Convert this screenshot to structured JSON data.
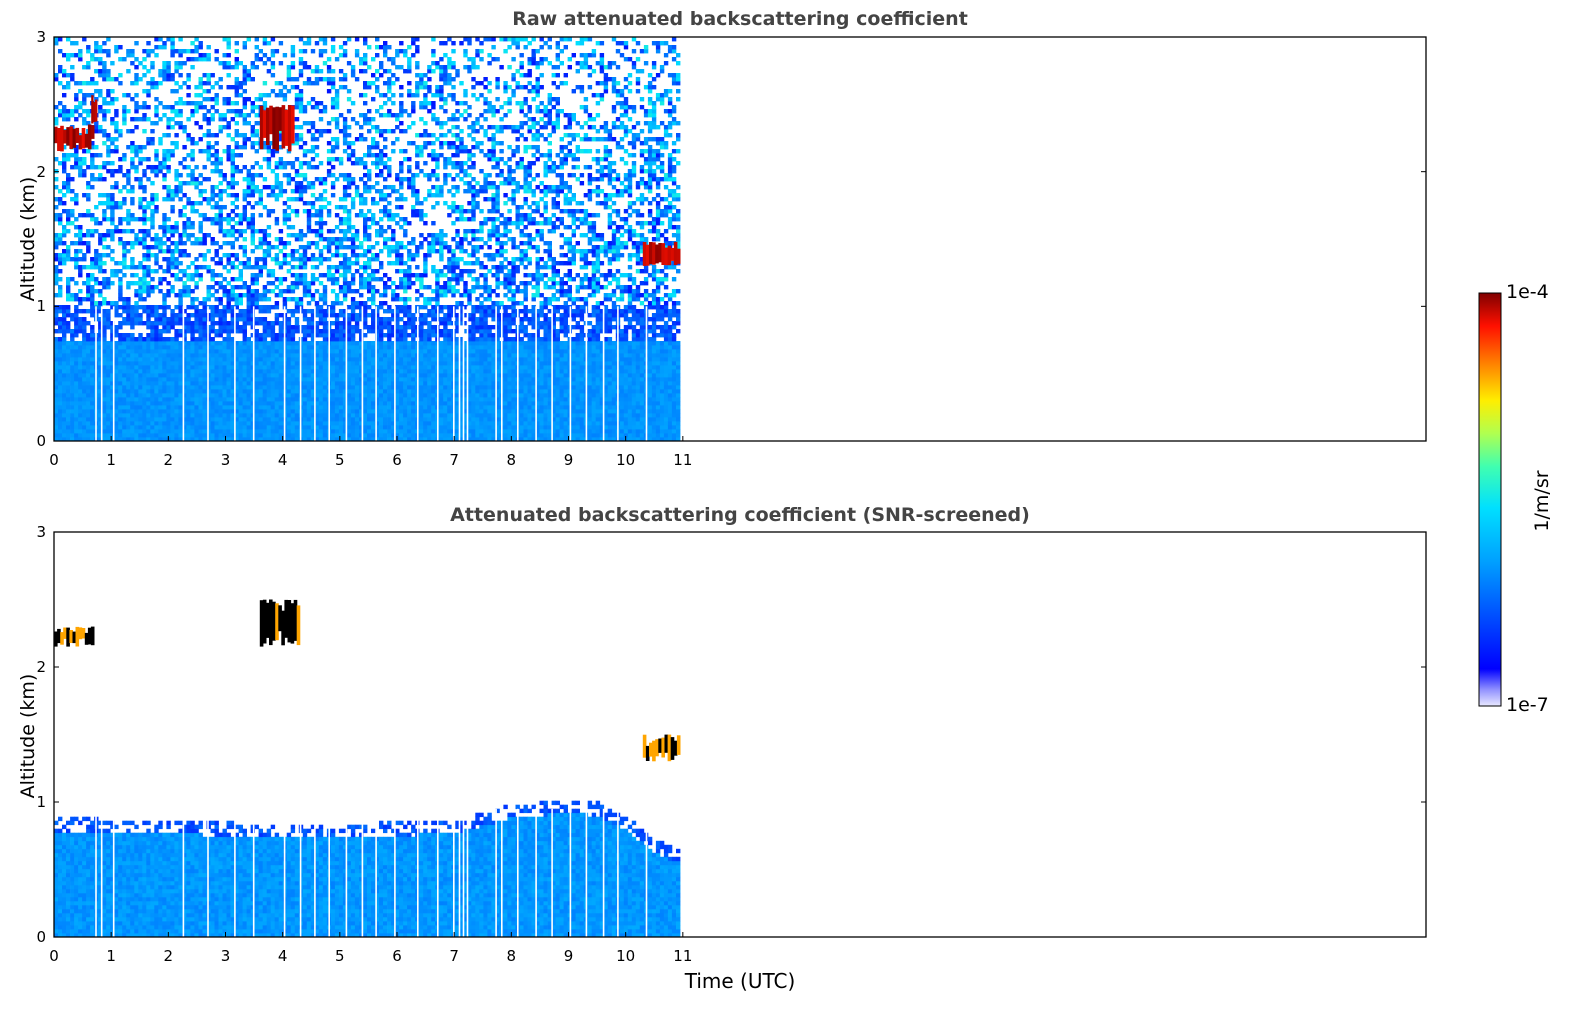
{
  "chart_data": [
    {
      "type": "heatmap",
      "title": "Raw attenuated backscattering coefficient",
      "xlabel": "",
      "ylabel": "Altitude (km)",
      "xlim": [
        0,
        24
      ],
      "ylim": [
        0,
        3
      ],
      "xticks": [
        "0",
        "1",
        "2",
        "3",
        "4",
        "5",
        "6",
        "7",
        "8",
        "9",
        "10",
        "11"
      ],
      "yticks": [
        "0",
        "1",
        "2",
        "3"
      ],
      "data_extent_x": [
        0,
        10.95
      ],
      "gap_times": [
        0.72,
        0.82,
        1.03,
        2.25,
        2.68,
        3.15,
        3.48,
        4.02,
        4.3,
        4.55,
        4.8,
        5.1,
        5.38,
        5.62,
        5.95,
        6.35,
        6.7,
        6.98,
        7.08,
        7.15,
        7.22,
        7.72,
        7.82,
        8.1,
        8.42,
        8.7,
        9.02,
        9.3,
        9.6,
        9.85,
        10.35
      ],
      "features": [
        {
          "x": [
            0.0,
            0.7
          ],
          "y": [
            2.15,
            2.35
          ],
          "level": "high"
        },
        {
          "x": [
            0.65,
            0.75
          ],
          "y": [
            2.35,
            2.6
          ],
          "level": "high"
        },
        {
          "x": [
            3.6,
            4.2
          ],
          "y": [
            2.15,
            2.5
          ],
          "level": "high"
        },
        {
          "x": [
            10.3,
            10.95
          ],
          "y": [
            1.3,
            1.48
          ],
          "level": "high"
        }
      ]
    },
    {
      "type": "heatmap",
      "title": "Attenuated backscattering coefficient (SNR-screened)",
      "xlabel": "Time (UTC)",
      "ylabel": "Altitude (km)",
      "xlim": [
        0,
        24
      ],
      "ylim": [
        0,
        3
      ],
      "xticks": [
        "0",
        "1",
        "2",
        "3",
        "4",
        "5",
        "6",
        "7",
        "8",
        "9",
        "10",
        "11"
      ],
      "yticks": [
        "0",
        "1",
        "2",
        "3"
      ],
      "data_extent_x": [
        0,
        10.95
      ],
      "boundary_layer_top_km": [
        [
          0,
          0.78
        ],
        [
          2,
          0.77
        ],
        [
          4,
          0.73
        ],
        [
          6,
          0.75
        ],
        [
          7,
          0.77
        ],
        [
          8,
          0.88
        ],
        [
          9,
          0.92
        ],
        [
          9.5,
          0.9
        ],
        [
          10,
          0.8
        ],
        [
          10.5,
          0.62
        ],
        [
          10.95,
          0.55
        ]
      ],
      "features": [
        {
          "x": [
            0.0,
            0.7
          ],
          "y": [
            2.15,
            2.3
          ],
          "level": "high"
        },
        {
          "x": [
            3.6,
            4.3
          ],
          "y": [
            2.15,
            2.5
          ],
          "level": "high"
        },
        {
          "x": [
            10.3,
            10.95
          ],
          "y": [
            1.3,
            1.5
          ],
          "level": "high"
        }
      ]
    }
  ],
  "colorbar": {
    "label": "1/m/sr",
    "max_label": "1e-4",
    "min_label": "1e-7",
    "scale": "log",
    "range": [
      1e-07,
      0.0001
    ],
    "colormap": "jet"
  }
}
